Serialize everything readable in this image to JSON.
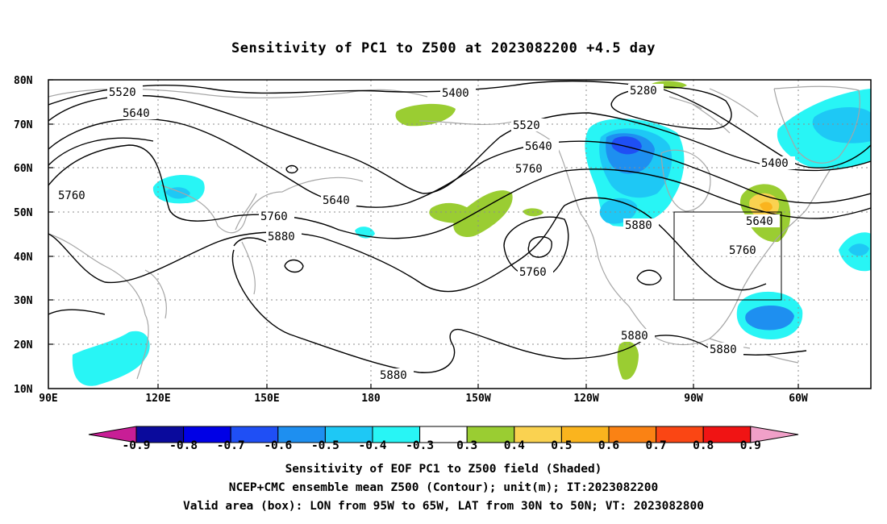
{
  "title": "Sensitivity of PC1 to Z500 at 2023082200 +4.5 day",
  "axes": {
    "y_labels": [
      "80N",
      "70N",
      "60N",
      "50N",
      "40N",
      "30N",
      "20N",
      "10N"
    ],
    "x_labels": [
      "90E",
      "120E",
      "150E",
      "180",
      "150W",
      "120W",
      "90W",
      "60W"
    ]
  },
  "contour_labels": [
    {
      "text": "5520",
      "id": "c5520a"
    },
    {
      "text": "5640",
      "id": "c5640a"
    },
    {
      "text": "5400",
      "id": "c5400a"
    },
    {
      "text": "5280",
      "id": "c5280a"
    },
    {
      "text": "5520",
      "id": "c5520b"
    },
    {
      "text": "5640",
      "id": "c5640b"
    },
    {
      "text": "5760",
      "id": "c5760a"
    },
    {
      "text": "5760",
      "id": "c5760b"
    },
    {
      "text": "5640",
      "id": "c5640c"
    },
    {
      "text": "5760",
      "id": "c5760c"
    },
    {
      "text": "5880",
      "id": "c5880a"
    },
    {
      "text": "5760",
      "id": "c5760d"
    },
    {
      "text": "5880",
      "id": "c5880b"
    },
    {
      "text": "5400",
      "id": "c5400b"
    },
    {
      "text": "5640",
      "id": "c5640d"
    },
    {
      "text": "5760",
      "id": "c5760e"
    },
    {
      "text": "5880",
      "id": "c5880c"
    },
    {
      "text": "5880",
      "id": "c5880d"
    },
    {
      "text": "5880",
      "id": "c5880e"
    }
  ],
  "colorbar": {
    "labels": [
      "-0.9",
      "-0.8",
      "-0.7",
      "-0.6",
      "-0.5",
      "-0.4",
      "-0.3",
      "0.3",
      "0.4",
      "0.5",
      "0.6",
      "0.7",
      "0.8",
      "0.9"
    ],
    "colors": [
      "#0a0a9c",
      "#0000e6",
      "#1f4ff5",
      "#1e8ff0",
      "#1ec8f5",
      "#28f5f5",
      "#ffffff",
      "#9acd32",
      "#fad250",
      "#fab41e",
      "#fa8214",
      "#fa4614",
      "#f01414"
    ],
    "end_low": "#c81e96",
    "end_high": "#f0a0c8"
  },
  "footer": {
    "line1": "Sensitivity of EOF PC1 to Z500 field (Shaded)",
    "line2": "NCEP+CMC ensemble mean Z500 (Contour); unit(m); IT:2023082200",
    "line3": "Valid area (box): LON from 95W to 65W, LAT from 30N to 50N; VT: 2023082800"
  },
  "valid_box": {
    "lon_min": "95W",
    "lon_max": "65W",
    "lat_min": "30N",
    "lat_max": "50N"
  }
}
